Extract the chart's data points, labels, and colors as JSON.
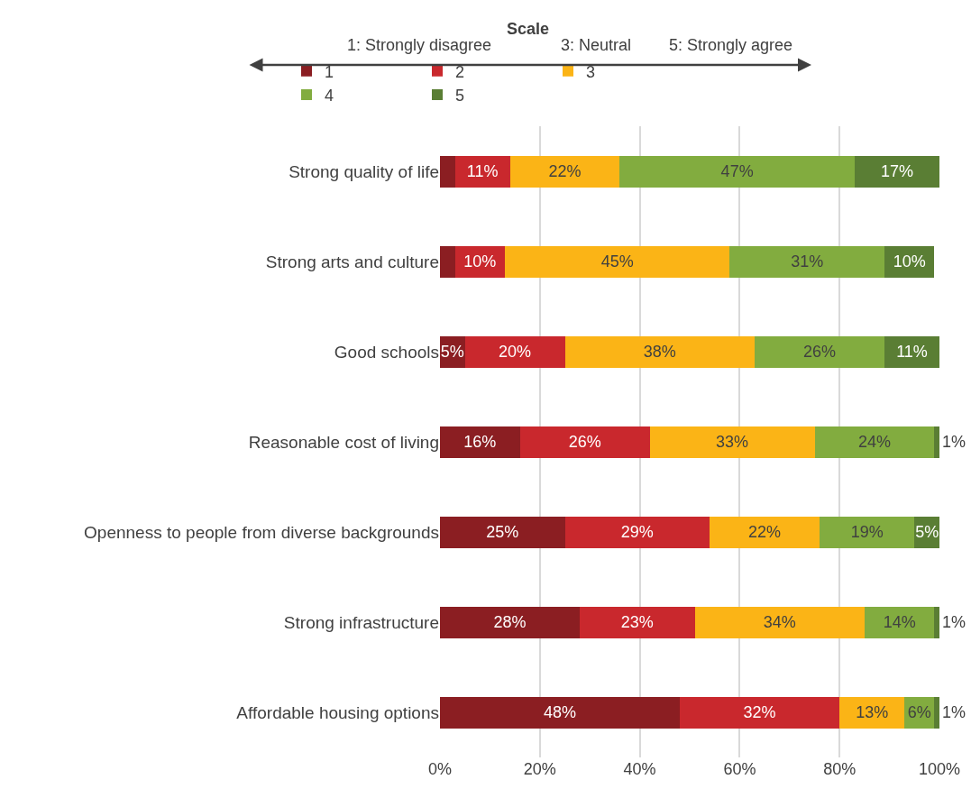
{
  "chart_data": {
    "type": "bar",
    "orientation": "horizontal",
    "stacked": true,
    "legend_title": "Scale",
    "annotations": [
      "1: Strongly disagree",
      "3: Neutral",
      "5: Strongly agree"
    ],
    "categories": [
      "Strong quality of life",
      "Strong arts and culture",
      "Good schools",
      "Reasonable cost of living",
      "Openness to people from diverse backgrounds",
      "Strong infrastructure",
      "Affordable housing options"
    ],
    "series": [
      {
        "name": "1",
        "color": "#8b1e22",
        "values": [
          3,
          3,
          5,
          16,
          25,
          28,
          48
        ],
        "value_labels": [
          null,
          null,
          "5%",
          "16%",
          "25%",
          "28%",
          "48%"
        ]
      },
      {
        "name": "2",
        "color": "#c9282d",
        "values": [
          11,
          10,
          20,
          26,
          29,
          23,
          32
        ],
        "value_labels": [
          "11%",
          "10%",
          "20%",
          "26%",
          "29%",
          "23%",
          "32%"
        ]
      },
      {
        "name": "3",
        "color": "#fbb416",
        "values": [
          22,
          45,
          38,
          33,
          22,
          34,
          13
        ],
        "value_labels": [
          "22%",
          "45%",
          "38%",
          "33%",
          "22%",
          "34%",
          "13%"
        ]
      },
      {
        "name": "4",
        "color": "#82ac3f",
        "values": [
          47,
          31,
          26,
          24,
          19,
          14,
          6
        ],
        "value_labels": [
          "47%",
          "31%",
          "26%",
          "24%",
          "19%",
          "14%",
          "6%"
        ]
      },
      {
        "name": "5",
        "color": "#5a7e34",
        "values": [
          17,
          10,
          11,
          1,
          5,
          1,
          1
        ],
        "value_labels": [
          "17%",
          "10%",
          "11%",
          "1%",
          "5%",
          "1%",
          "1%"
        ]
      }
    ],
    "xlim": [
      0,
      100
    ],
    "xticks": [
      {
        "value": 0,
        "label": "0%"
      },
      {
        "value": 20,
        "label": "20%"
      },
      {
        "value": 40,
        "label": "40%"
      },
      {
        "value": 60,
        "label": "60%"
      },
      {
        "value": 80,
        "label": "80%"
      },
      {
        "value": 100,
        "label": "100%"
      }
    ],
    "grid": "x",
    "legend": "top"
  }
}
